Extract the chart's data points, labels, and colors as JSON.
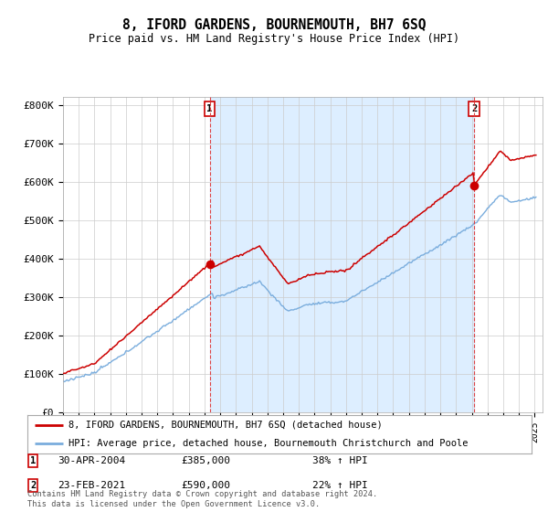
{
  "title": "8, IFORD GARDENS, BOURNEMOUTH, BH7 6SQ",
  "subtitle": "Price paid vs. HM Land Registry's House Price Index (HPI)",
  "ylabel_ticks": [
    "£0",
    "£100K",
    "£200K",
    "£300K",
    "£400K",
    "£500K",
    "£600K",
    "£700K",
    "£800K"
  ],
  "ytick_values": [
    0,
    100000,
    200000,
    300000,
    400000,
    500000,
    600000,
    700000,
    800000
  ],
  "ylim": [
    0,
    820000
  ],
  "sale1_date": "30-APR-2004",
  "sale1_price": 385000,
  "sale1_hpi_pct": "38% ↑ HPI",
  "sale1_label": "1",
  "sale2_date": "23-FEB-2021",
  "sale2_price": 590000,
  "sale2_hpi_pct": "22% ↑ HPI",
  "sale2_label": "2",
  "legend_line1": "8, IFORD GARDENS, BOURNEMOUTH, BH7 6SQ (detached house)",
  "legend_line2": "HPI: Average price, detached house, Bournemouth Christchurch and Poole",
  "footer": "Contains HM Land Registry data © Crown copyright and database right 2024.\nThis data is licensed under the Open Government Licence v3.0.",
  "property_color": "#cc0000",
  "hpi_color": "#7aaddd",
  "shade_color": "#ddeeff",
  "sale_vline_color": "#dd4444",
  "sale1_x_year": 2004.33,
  "sale2_x_year": 2021.15,
  "xmin": 1995,
  "xmax": 2025.5,
  "background_color": "#ffffff",
  "grid_color": "#cccccc"
}
